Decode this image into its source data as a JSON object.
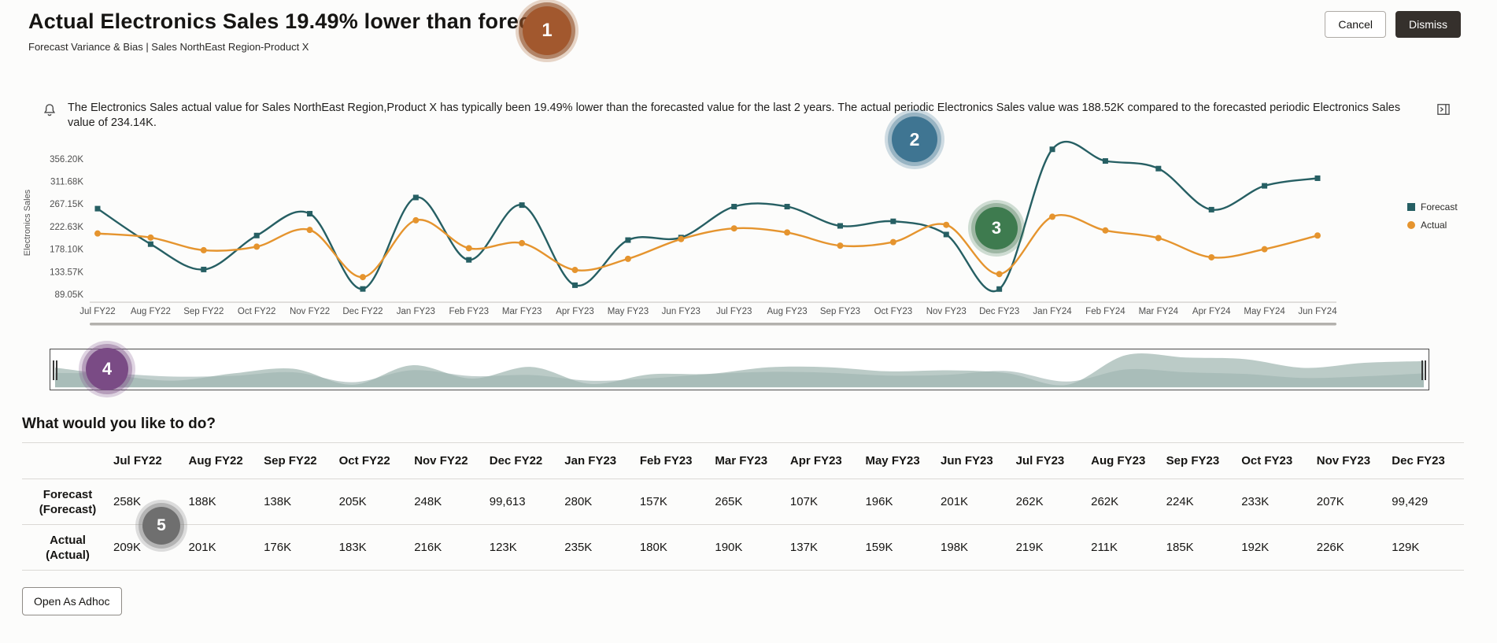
{
  "header": {
    "title": "Actual Electronics Sales 19.49% lower than forecast",
    "subtitle": "Forecast Variance & Bias | Sales NorthEast Region-Product X",
    "cancel_label": "Cancel",
    "dismiss_label": "Dismiss"
  },
  "insight": {
    "text": "The Electronics Sales actual value for Sales NorthEast Region,Product X has typically been 19.49% lower than the forecasted value for the last 2 years. The actual periodic Electronics Sales value was 188.52K compared to the forecasted periodic Electronics Sales value of 234.14K."
  },
  "annotations": [
    {
      "label": "1",
      "fill": "#a2582e",
      "ring": "rgba(134,66,26,0.55)",
      "halo": "rgba(171,106,60,0.28)"
    },
    {
      "label": "2",
      "fill": "#3f7592",
      "ring": "rgba(98,141,163,0.50)",
      "halo": "rgba(63,117,146,0.24)"
    },
    {
      "label": "3",
      "fill": "#3e7b4f",
      "ring": "rgba(110,146,118,0.50)",
      "halo": "rgba(62,123,79,0.24)"
    },
    {
      "label": "4",
      "fill": "#7a4b85",
      "ring": "rgba(141,105,150,0.50)",
      "halo": "rgba(122,75,133,0.24)"
    },
    {
      "label": "5",
      "fill": "#6f6f6f",
      "ring": "rgba(130,130,130,0.45)",
      "halo": "rgba(110,110,110,0.22)"
    }
  ],
  "chart_data": {
    "type": "line",
    "title": "",
    "xlabel": "",
    "ylabel": "Electronics Sales",
    "x": [
      "Jul FY22",
      "Aug FY22",
      "Sep FY22",
      "Oct FY22",
      "Nov FY22",
      "Dec FY22",
      "Jan FY23",
      "Feb FY23",
      "Mar FY23",
      "Apr FY23",
      "May FY23",
      "Jun FY23",
      "Jul FY23",
      "Aug FY23",
      "Sep FY23",
      "Oct FY23",
      "Nov FY23",
      "Dec FY23",
      "Jan FY24",
      "Feb FY24",
      "Mar FY24",
      "Apr FY24",
      "May FY24",
      "Jun FY24"
    ],
    "series": [
      {
        "name": "Forecast",
        "color": "#265f63",
        "marker": "square",
        "values": [
          258000,
          188000,
          138000,
          205000,
          248000,
          99613,
          280000,
          157000,
          265000,
          107000,
          196000,
          201000,
          262000,
          262000,
          224000,
          233000,
          207000,
          99429,
          375000,
          352000,
          337000,
          256000,
          303000,
          318000
        ]
      },
      {
        "name": "Actual",
        "color": "#e5942e",
        "marker": "circle",
        "values": [
          209000,
          201000,
          176000,
          183000,
          216000,
          123000,
          235000,
          180000,
          190000,
          137000,
          159000,
          198000,
          219000,
          211000,
          185000,
          192000,
          226000,
          129000,
          242000,
          215000,
          200000,
          162000,
          178000,
          205000
        ]
      }
    ],
    "y_ticks": [
      89050,
      133570,
      178100,
      222630,
      267150,
      311680,
      356200
    ],
    "y_tick_labels": [
      "89.05K",
      "133.57K",
      "178.10K",
      "222.63K",
      "267.15K",
      "311.68K",
      "356.20K"
    ],
    "ylim": [
      75000,
      387000
    ],
    "grid": false,
    "legend_position": "right"
  },
  "timebar": {
    "fill_primary": "#b7c8c4",
    "fill_secondary": "#9fb6b2"
  },
  "prompt": {
    "heading": "What would you like to do?"
  },
  "table": {
    "columns": [
      "Jul FY22",
      "Aug FY22",
      "Sep FY22",
      "Oct FY22",
      "Nov FY22",
      "Dec FY22",
      "Jan FY23",
      "Feb FY23",
      "Mar FY23",
      "Apr FY23",
      "May FY23",
      "Jun FY23",
      "Jul FY23",
      "Aug FY23",
      "Sep FY23",
      "Oct FY23",
      "Nov FY23",
      "Dec FY23"
    ],
    "rows": [
      {
        "label": "Forecast",
        "sublabel": "(Forecast)",
        "values": [
          "258K",
          "188K",
          "138K",
          "205K",
          "248K",
          "99,613",
          "280K",
          "157K",
          "265K",
          "107K",
          "196K",
          "201K",
          "262K",
          "262K",
          "224K",
          "233K",
          "207K",
          "99,429"
        ]
      },
      {
        "label": "Actual",
        "sublabel": "(Actual)",
        "values": [
          "209K",
          "201K",
          "176K",
          "183K",
          "216K",
          "123K",
          "235K",
          "180K",
          "190K",
          "137K",
          "159K",
          "198K",
          "219K",
          "211K",
          "185K",
          "192K",
          "226K",
          "129K"
        ]
      }
    ]
  },
  "actions": {
    "open_as_adhoc_label": "Open As Adhoc"
  }
}
